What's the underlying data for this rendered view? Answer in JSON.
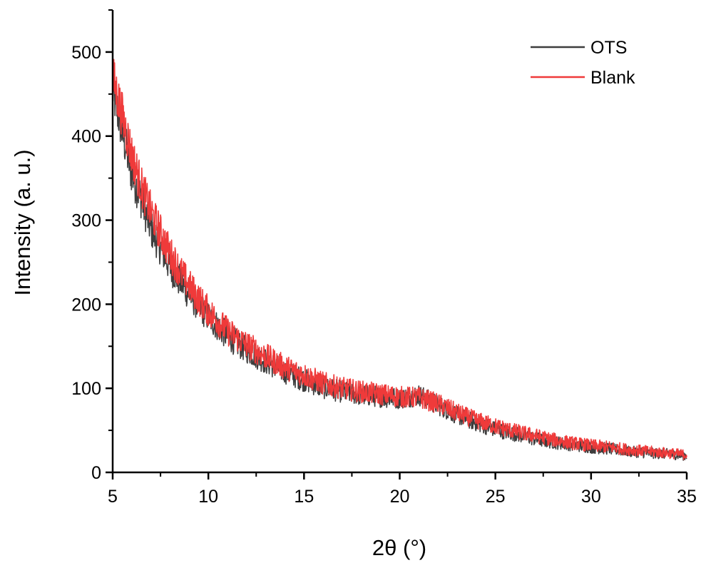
{
  "chart_data": {
    "type": "line",
    "title": "",
    "xlabel": "2θ (°)",
    "ylabel": "Intensity (a. u.)",
    "xlim": [
      5,
      35
    ],
    "ylim": [
      0,
      550
    ],
    "x_ticks": [
      5,
      10,
      15,
      20,
      25,
      30,
      35
    ],
    "y_ticks": [
      0,
      100,
      200,
      300,
      400,
      500
    ],
    "grid": false,
    "legend_position": "top-right",
    "series": [
      {
        "name": "OTS",
        "color": "#3d3d3d",
        "x": [
          5,
          5.5,
          6,
          6.5,
          7,
          7.5,
          8,
          8.5,
          9,
          9.5,
          10,
          11,
          12,
          13,
          14,
          15,
          16,
          17,
          18,
          19,
          20,
          21,
          22,
          23,
          24,
          25,
          26,
          27,
          28,
          29,
          30,
          31,
          32,
          33,
          34,
          35
        ],
        "y": [
          455,
          405,
          355,
          325,
          290,
          268,
          245,
          228,
          212,
          198,
          185,
          162,
          146,
          132,
          120,
          110,
          101,
          96,
          92,
          90,
          88,
          92,
          80,
          68,
          59,
          51,
          46,
          40,
          36,
          33,
          30,
          28,
          25,
          23,
          22,
          20
        ]
      },
      {
        "name": "Blank",
        "color": "#ef3a3a",
        "x": [
          5,
          5.5,
          6,
          6.5,
          7,
          7.5,
          8,
          8.5,
          9,
          9.5,
          10,
          11,
          12,
          13,
          14,
          15,
          16,
          17,
          18,
          19,
          20,
          21,
          22,
          23,
          24,
          25,
          26,
          27,
          28,
          29,
          30,
          31,
          32,
          33,
          34,
          35
        ],
        "y": [
          470,
          425,
          378,
          340,
          310,
          285,
          260,
          240,
          222,
          206,
          192,
          168,
          152,
          138,
          125,
          116,
          106,
          100,
          96,
          93,
          90,
          89,
          82,
          71,
          62,
          55,
          49,
          44,
          39,
          35,
          32,
          30,
          27,
          25,
          23,
          21
        ]
      }
    ]
  }
}
